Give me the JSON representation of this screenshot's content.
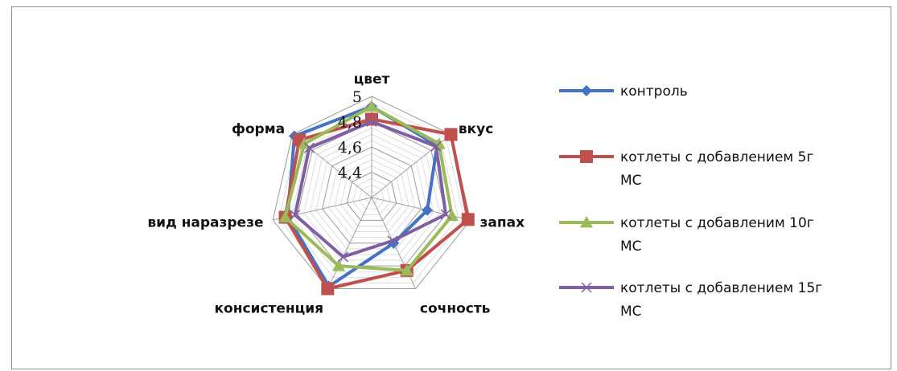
{
  "chart_data": {
    "type": "radar",
    "axes": [
      "цвет",
      "вкус",
      "запах",
      "сочность",
      "консистенция",
      "вид наразрезе",
      "форма"
    ],
    "range": [
      4.2,
      5
    ],
    "ticks": [
      4.4,
      4.6,
      4.8,
      5
    ],
    "tick_labels": [
      "4,4",
      "4,6",
      "4,8",
      "5"
    ],
    "gridlines": true,
    "legend_position": "right",
    "series": [
      {
        "name": "контроль",
        "color": "#4472c4",
        "marker": "diamond",
        "values": [
          4.92,
          4.86,
          4.65,
          4.6,
          4.98,
          4.88,
          4.98
        ]
      },
      {
        "name": "котлеты с добавлением 5г МС",
        "color": "#c0504d",
        "marker": "square",
        "values": [
          4.82,
          5.0,
          4.98,
          4.84,
          5.0,
          4.9,
          4.93
        ]
      },
      {
        "name": "котлеты с добавленим 10г МС",
        "color": "#9bbb59",
        "marker": "triangle",
        "values": [
          4.92,
          4.88,
          4.85,
          4.84,
          4.8,
          4.9,
          4.88
        ]
      },
      {
        "name": "котлеты с добавлением 15г МС",
        "color": "#7f5fa1",
        "marker": "x",
        "values": [
          4.8,
          4.85,
          4.8,
          4.58,
          4.72,
          4.82,
          4.83
        ]
      }
    ]
  }
}
